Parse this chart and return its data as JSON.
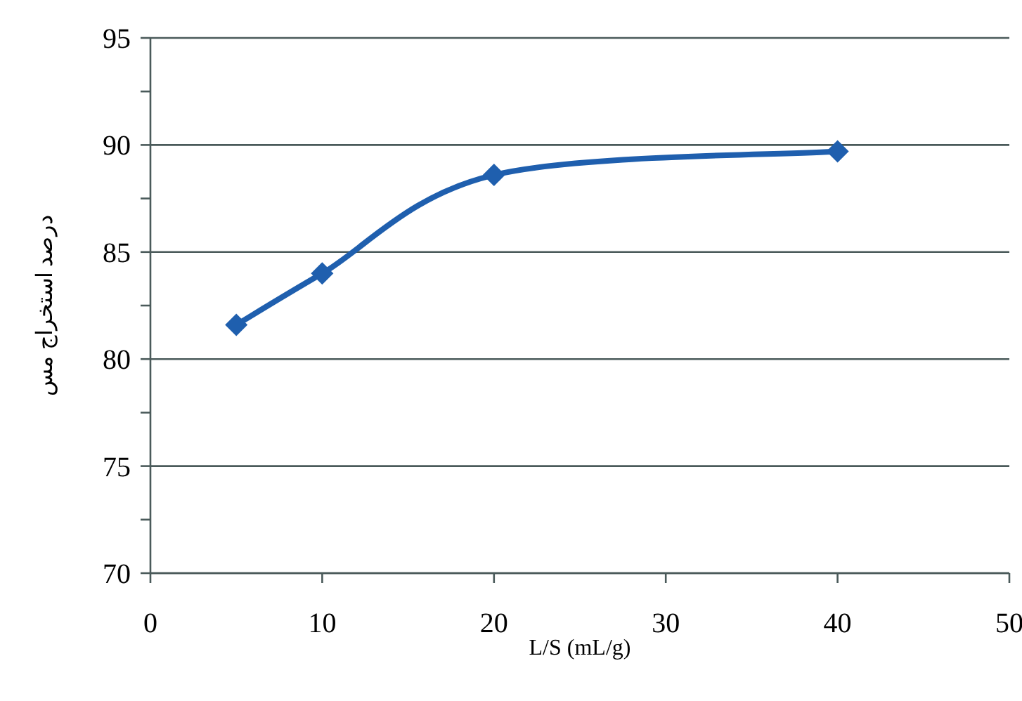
{
  "chart_data": {
    "type": "line",
    "xlabel": "L/S (mL/g)",
    "ylabel": "درصد استخراج مس",
    "x": [
      5,
      10,
      20,
      40
    ],
    "series": [
      {
        "color": "#1f5fae",
        "values": [
          81.6,
          84.0,
          88.6,
          89.7
        ]
      }
    ],
    "xlim": [
      0,
      50
    ],
    "xticks": [
      0,
      10,
      20,
      30,
      40,
      50
    ],
    "ylim": [
      70,
      95
    ],
    "yticks": [
      70,
      {
        "value": 72.5,
        "label": null
      },
      75,
      {
        "value": 77.5,
        "label": null
      },
      80,
      {
        "value": 82.5,
        "label": null
      },
      85,
      {
        "value": 87.5,
        "label": null
      },
      90,
      {
        "value": 92.5,
        "label": null
      },
      95
    ],
    "grid": "y",
    "marker": "diamond",
    "line_style": "solid"
  }
}
